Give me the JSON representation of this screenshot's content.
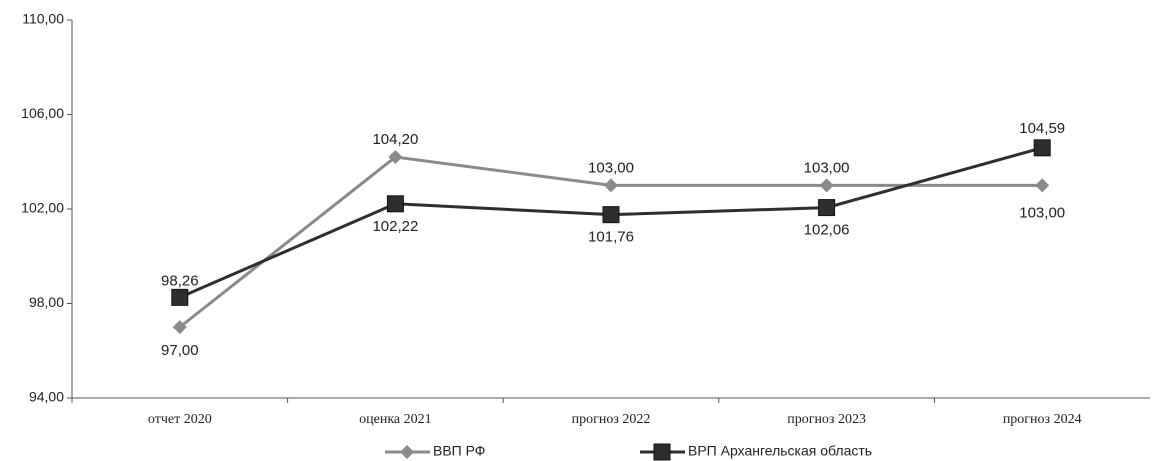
{
  "chart_data": {
    "type": "line",
    "categories": [
      "отчет 2020",
      "оценка 2021",
      "прогноз 2022",
      "прогноз 2023",
      "прогноз 2024"
    ],
    "series": [
      {
        "name": "ВВП РФ",
        "color": "#8a8a8a",
        "marker": "diamond",
        "values": [
          97.0,
          104.2,
          103.0,
          103.0,
          103.0
        ],
        "value_labels": [
          "97,00",
          "104,20",
          "103,00",
          "103,00",
          "103,00"
        ]
      },
      {
        "name": "ВРП Архангельская область",
        "color": "#2e2e2e",
        "marker": "square",
        "values": [
          98.26,
          102.22,
          101.76,
          102.06,
          104.59
        ],
        "value_labels": [
          "98,26",
          "102,22",
          "101,76",
          "102,06",
          "104,59"
        ]
      }
    ],
    "ylim": [
      94,
      110
    ],
    "yticks": [
      {
        "value": 94,
        "label": "94,00"
      },
      {
        "value": 98,
        "label": "98,00"
      },
      {
        "value": 102,
        "label": "102,00"
      },
      {
        "value": 106,
        "label": "106,00"
      },
      {
        "value": 110,
        "label": "110,00"
      }
    ],
    "grid": false,
    "legend": "bottom"
  }
}
